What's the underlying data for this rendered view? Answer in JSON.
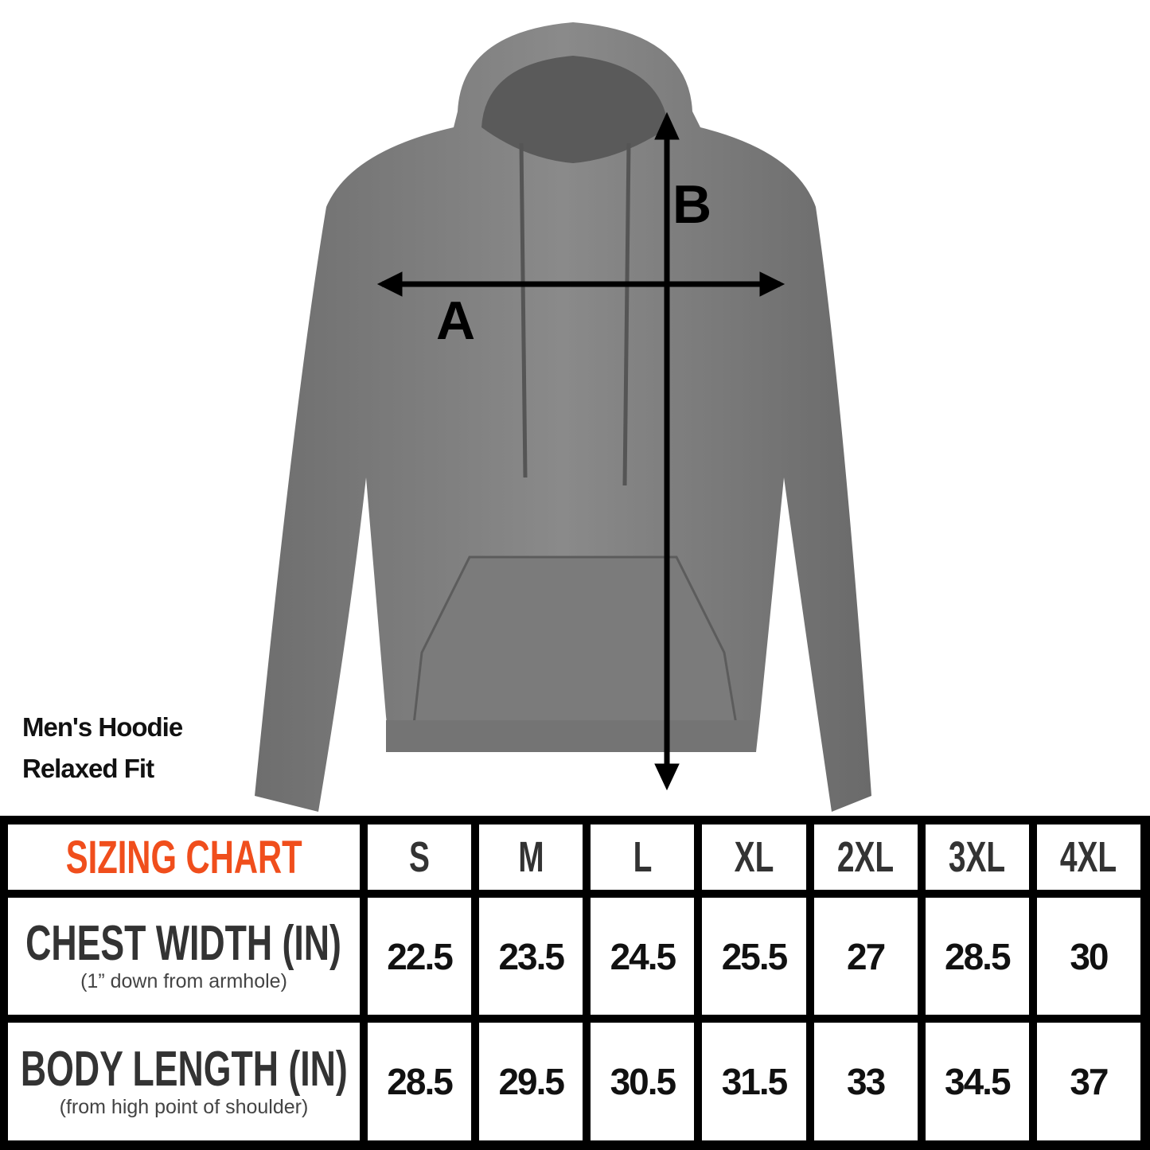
{
  "product": {
    "name": "Men's Hoodie",
    "fit": "Relaxed Fit",
    "color": "#7a7a7a"
  },
  "diagram": {
    "label_a": "A",
    "label_b": "B"
  },
  "table": {
    "title": "SIZING CHART",
    "title_color": "#f04e1c",
    "sizes": [
      "S",
      "M",
      "L",
      "XL",
      "2XL",
      "3XL",
      "4XL"
    ],
    "rows": [
      {
        "label": "CHEST WIDTH (IN)",
        "note": "(1” down from armhole)",
        "values": [
          "22.5",
          "23.5",
          "24.5",
          "25.5",
          "27",
          "28.5",
          "30"
        ]
      },
      {
        "label": "BODY LENGTH (IN)",
        "note": "(from high point of shoulder)",
        "values": [
          "28.5",
          "29.5",
          "30.5",
          "31.5",
          "33",
          "34.5",
          "37"
        ]
      }
    ]
  }
}
